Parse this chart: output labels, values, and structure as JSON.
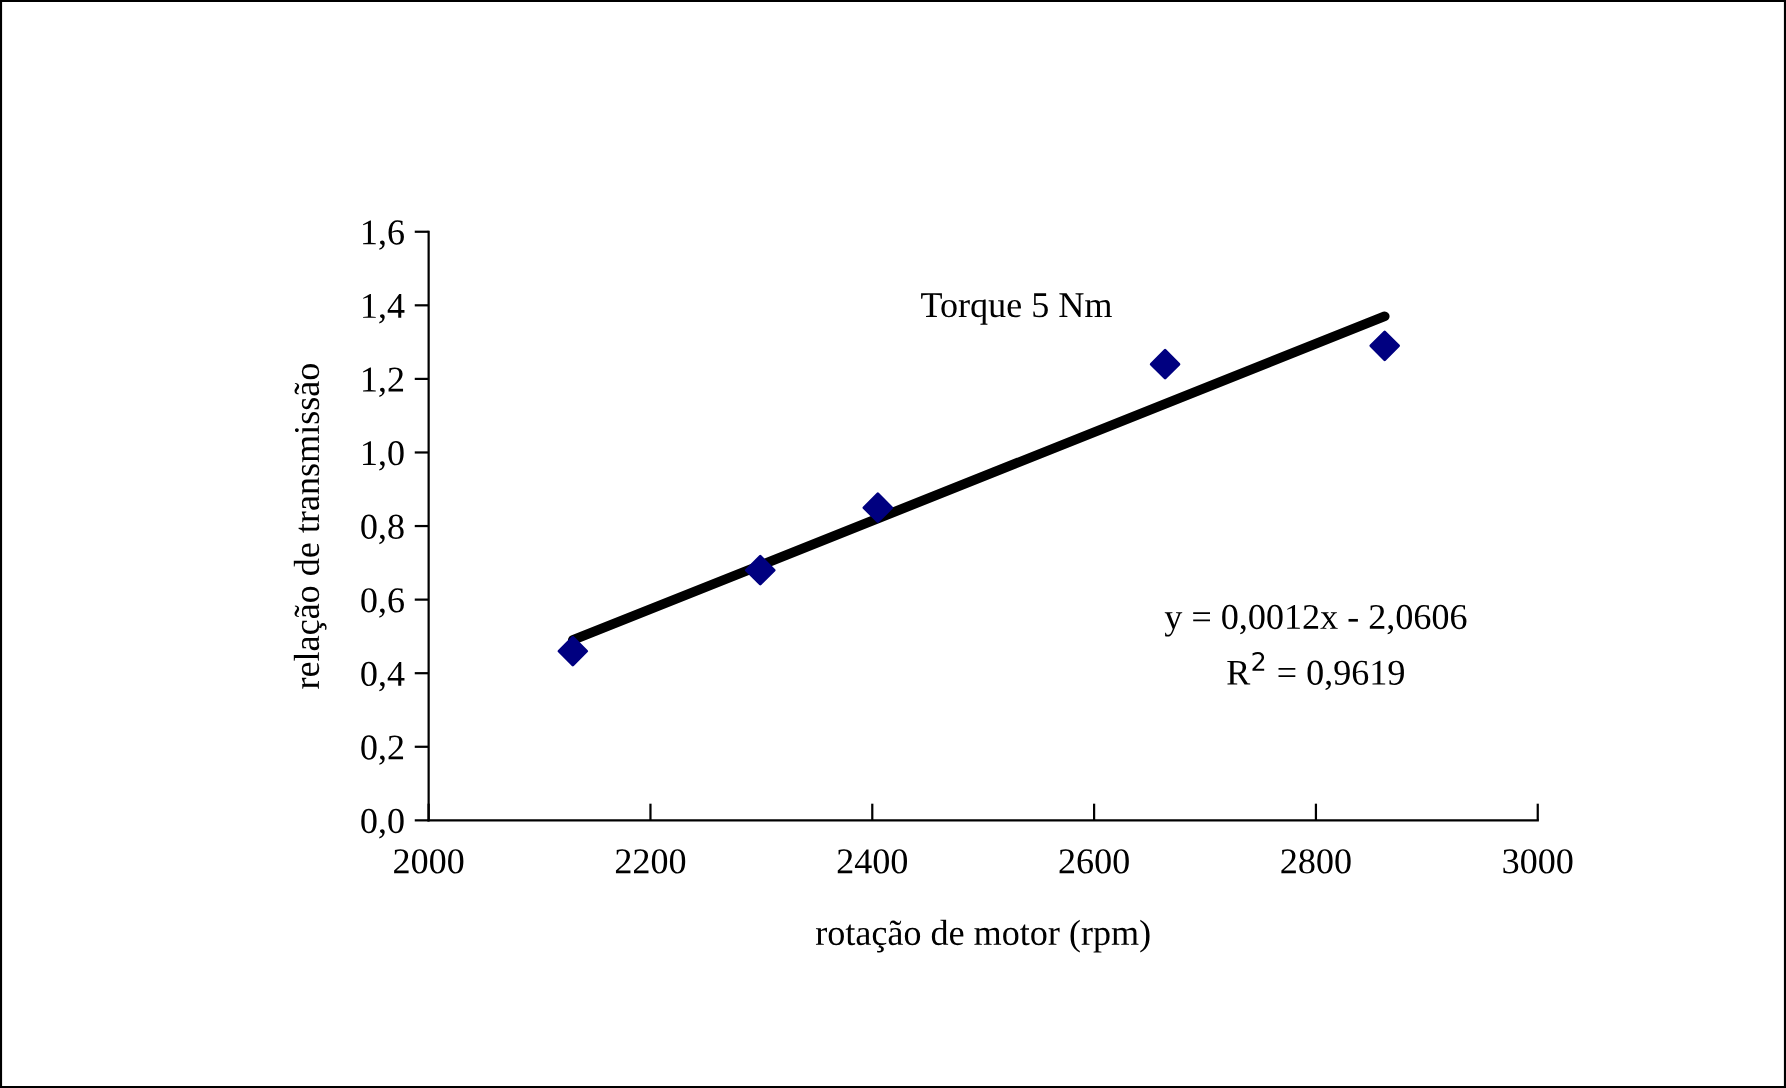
{
  "chart_data": {
    "type": "scatter",
    "xlabel": "rotação de motor (rpm)",
    "ylabel": "relação de transmissão",
    "series": [
      {
        "color": "#000080",
        "marker": "diamond",
        "x": [
          2130,
          2299,
          2405,
          2664,
          2862
        ],
        "values": [
          0.46,
          0.68,
          0.85,
          1.24,
          1.29
        ]
      },
      {
        "type": "line",
        "color": "#000000",
        "marker": "none",
        "line_style": "solid",
        "x": [
          2130,
          2862
        ],
        "values": [
          0.49,
          1.37
        ]
      }
    ],
    "annotations": [
      "Torque 5 Nm",
      "y = 0,0012x - 2,0606",
      "R$^{2}$ = 0,9619"
    ],
    "xlim": [
      2000,
      3000
    ],
    "xticks": [
      2000,
      2200,
      2400,
      2600,
      2800,
      3000
    ],
    "ylim": [
      0,
      1.6
    ],
    "yticks": [
      {
        "value": 0,
        "label": "0,0"
      },
      {
        "value": 0.2,
        "label": "0,2"
      },
      {
        "value": 0.4,
        "label": "0,4"
      },
      {
        "value": 0.6,
        "label": "0,6"
      },
      {
        "value": 0.8,
        "label": "0,8"
      },
      {
        "value": 1.0,
        "label": "1,0"
      },
      {
        "value": 1.2,
        "label": "1,2"
      },
      {
        "value": 1.4,
        "label": "1,4"
      },
      {
        "value": 1.6,
        "label": "1,6"
      }
    ],
    "grid": false,
    "legend": false
  }
}
